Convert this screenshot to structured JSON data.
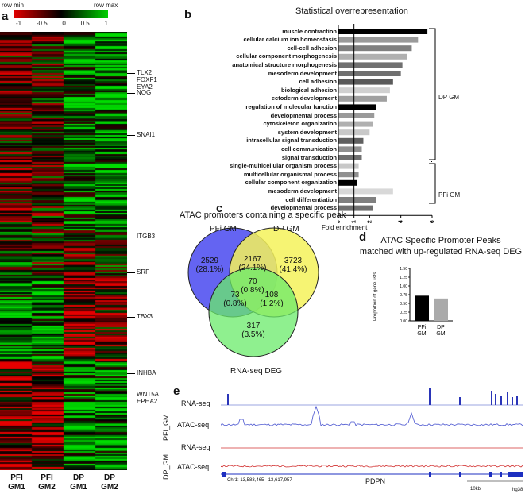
{
  "panel_a": {
    "letter": "a",
    "legend": {
      "min_label": "row min",
      "max_label": "row max",
      "ticks": [
        "-1",
        "-0.5",
        "0",
        "0.5",
        "1"
      ]
    },
    "genes": [
      "TLX2",
      "FOXF1",
      "EYA2",
      "NOG",
      "SNAI1",
      "ITGB3",
      "SRF",
      "TBX3",
      "INHBA",
      "WNT5A",
      "EPHA2"
    ],
    "columns": [
      {
        "line1": "PFI",
        "line2": "GM1"
      },
      {
        "line1": "PFI",
        "line2": "GM2"
      },
      {
        "line1": "DP",
        "line2": "GM1"
      },
      {
        "line1": "DP",
        "line2": "GM2"
      }
    ]
  },
  "panel_b": {
    "letter": "b",
    "title": "Statistical overrepresentation",
    "xlabel": "Fold enrichment",
    "bracket_dp": "DP GM",
    "bracket_pfi": "PFi GM"
  },
  "panel_c": {
    "letter": "c",
    "title": "ATAC promoters containing a specific peak",
    "set_pfi": "PFi GM",
    "set_dp": "DP GM",
    "set_rna": "RNA-seq DEG",
    "regions": {
      "pfi_only": {
        "count": "2529",
        "pct": "(28.1%)"
      },
      "pfi_dp": {
        "count": "2167",
        "pct": "(24.1%)"
      },
      "dp_only": {
        "count": "3723",
        "pct": "(41.4%)"
      },
      "all": {
        "count": "70",
        "pct": "(0.8%)"
      },
      "pfi_rna": {
        "count": "73",
        "pct": "(0.8%)"
      },
      "dp_rna": {
        "count": "108",
        "pct": "(1.2%)"
      },
      "rna_only": {
        "count": "317",
        "pct": "(3.5%)"
      }
    }
  },
  "panel_d": {
    "letter": "d",
    "title_line1": "ATAC Specific Promoter Peaks",
    "title_line2": "matched with up-regulated RNA-seq DEG"
  },
  "panel_e": {
    "letter": "e",
    "group1": "PFI_GM",
    "group2": "DP_GM",
    "track_rna": "RNA-seq",
    "track_atac": "ATAC-seq",
    "coords": "Chr1: 13,583,465 - 13,617,957",
    "gene": "PDPN",
    "scale": "10kb",
    "genome": "hg38",
    "colors": {
      "rna_pfi": "#2a35b8",
      "atac_pfi": "#4a55d0",
      "dp": "#d23030"
    }
  },
  "chart_data": [
    {
      "type": "bar",
      "orientation": "horizontal",
      "title": "Statistical overrepresentation",
      "xlabel": "Fold enrichment",
      "xlim": [
        0,
        6
      ],
      "xticks": [
        "0",
        "1",
        "2",
        "4",
        "6"
      ],
      "reference_line": 1,
      "categories": [
        "muscle contraction",
        "cellular calcium ion homeostasis",
        "cell-cell adhesion",
        "cellular component morphogenesis",
        "anatomical structure morphogenesis",
        "mesoderm development",
        "cell adhesion",
        "biological adhesion",
        "ectoderm development",
        "regulation of molecular function",
        "developmental process",
        "cytoskeleton organization",
        "system development",
        "intracellular signal transduction",
        "cell communication",
        "signal transduction",
        "single-multicellular organism process",
        "multicellular organismal process",
        "cellular component organization",
        "mesoderm development",
        "cell differentiation",
        "developmental process"
      ],
      "values": [
        5.7,
        5.1,
        4.7,
        4.4,
        4.1,
        4.0,
        3.5,
        3.3,
        3.1,
        2.4,
        2.3,
        2.2,
        2.0,
        1.6,
        1.5,
        1.5,
        1.3,
        1.3,
        1.2,
        3.5,
        2.4,
        2.2
      ],
      "groups": [
        "DP GM",
        "DP GM",
        "DP GM",
        "DP GM",
        "DP GM",
        "DP GM",
        "DP GM",
        "DP GM",
        "DP GM",
        "DP GM",
        "DP GM",
        "DP GM",
        "DP GM",
        "DP GM",
        "DP GM",
        "DP GM",
        "DP GM",
        "DP GM",
        "DP GM",
        "PFi GM",
        "PFi GM",
        "PFi GM"
      ],
      "bar_colors": [
        "#000000",
        "#9a9a9a",
        "#808080",
        "#b0b0b0",
        "#707070",
        "#707070",
        "#5a5a5a",
        "#d0d0d0",
        "#a0a0a0",
        "#000000",
        "#9a9a9a",
        "#b0b0b0",
        "#c8c8c8",
        "#606060",
        "#909090",
        "#707070",
        "#c8c8c8",
        "#909090",
        "#000000",
        "#d8d8d8",
        "#808080",
        "#707070"
      ]
    },
    {
      "type": "bar",
      "title": "ATAC Specific Promoter Peaks matched with up-regulated RNA-seq DEG",
      "ylabel": "Proportion of gene lists",
      "ylim": [
        0,
        1.5
      ],
      "yticks": [
        "0.00",
        "0.25",
        "0.50",
        "0.75",
        "1.00",
        "1.25",
        "1.50"
      ],
      "categories": [
        "PFi GM",
        "DP GM"
      ],
      "values": [
        0.72,
        0.64
      ],
      "bar_colors": [
        "#000000",
        "#aaaaaa"
      ]
    }
  ]
}
